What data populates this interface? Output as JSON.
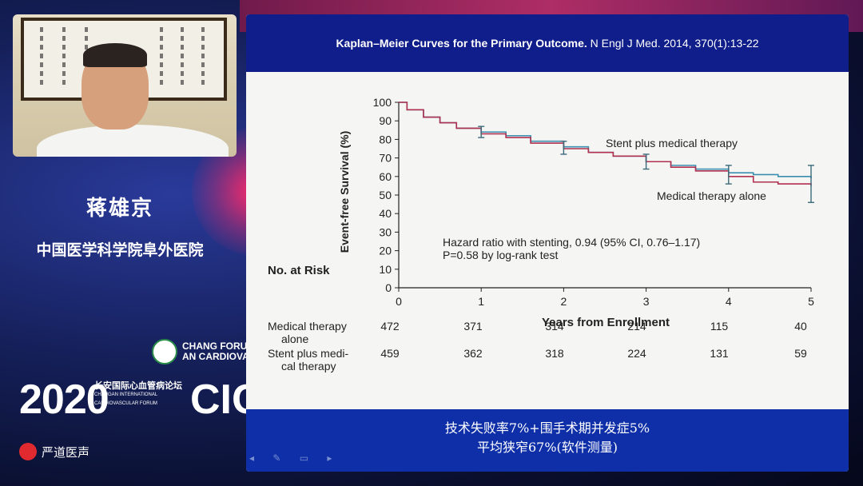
{
  "speaker": {
    "name": "蒋雄京",
    "organization": "中国医学科学院阜外医院"
  },
  "event": {
    "logo_text_line1": "CHANG FORUM",
    "logo_text_line2": "AN CARDIOVASCULAR",
    "year": "2020",
    "forum_name": "长安国际心血管病论坛",
    "forum_name_en": "CHANGAN INTERNATIONAL CARDIOVASCULAR FORUM",
    "acronym": "CIC",
    "brand": "严道医声"
  },
  "slide": {
    "title_bold": "Kaplan–Meier Curves for the Primary Outcome.",
    "title_citation": " N Engl J Med. 2014, 370(1):13-22",
    "caption_line1": "技术失败率7%+围手术期并发症5%",
    "caption_line2": "平均狭窄67%(软件测量)"
  },
  "chart_data": {
    "type": "line",
    "ylabel": "Event-free Survival (%)",
    "xlabel": "Years from Enrollment",
    "xlim": [
      0,
      5
    ],
    "ylim": [
      0,
      100
    ],
    "x_ticks": [
      "0",
      "1",
      "2",
      "3",
      "4",
      "5"
    ],
    "y_ticks": [
      "0",
      "10",
      "20",
      "30",
      "40",
      "50",
      "60",
      "70",
      "80",
      "90",
      "100"
    ],
    "grid": false,
    "colors": {
      "stent": "#3a8fb0",
      "medical": "#b03050"
    },
    "series": [
      {
        "name": "Stent plus medical therapy",
        "key": "stent",
        "x": [
          0,
          0.1,
          0.3,
          0.5,
          0.7,
          1.0,
          1.3,
          1.6,
          2.0,
          2.3,
          2.6,
          3.0,
          3.3,
          3.6,
          4.0,
          4.3,
          4.6,
          5.0
        ],
        "y": [
          100,
          96,
          92,
          89,
          86,
          84,
          82,
          79,
          76,
          73,
          71,
          68,
          66,
          64,
          62,
          61,
          60,
          59
        ]
      },
      {
        "name": "Medical therapy alone",
        "key": "medical",
        "x": [
          0,
          0.1,
          0.3,
          0.5,
          0.7,
          1.0,
          1.3,
          1.6,
          2.0,
          2.3,
          2.6,
          3.0,
          3.3,
          3.6,
          4.0,
          4.3,
          4.6,
          5.0
        ],
        "y": [
          100,
          96,
          92,
          89,
          86,
          83,
          81,
          78,
          75,
          73,
          71,
          68,
          65,
          63,
          60,
          57,
          56,
          55
        ]
      }
    ],
    "error_bars": [
      {
        "x": 1,
        "y": 84,
        "lo": 81,
        "hi": 87
      },
      {
        "x": 2,
        "y": 75,
        "lo": 72,
        "hi": 79
      },
      {
        "x": 3,
        "y": 68,
        "lo": 64,
        "hi": 72
      },
      {
        "x": 4,
        "y": 61,
        "lo": 56,
        "hi": 66
      },
      {
        "x": 5,
        "y": 56,
        "lo": 46,
        "hi": 66
      }
    ],
    "annotations": {
      "stent_label": "Stent plus medical therapy",
      "medical_label": "Medical therapy alone",
      "hr_text": "Hazard ratio with stenting, 0.94 (95% CI, 0.76–1.17)",
      "p_text": "P=0.58 by log-rank test"
    },
    "risk_table": {
      "header": "No. at Risk",
      "rows": [
        {
          "label_line1": "Medical therapy",
          "label_line2": "alone",
          "values": [
            "472",
            "371",
            "314",
            "214",
            "115",
            "40"
          ]
        },
        {
          "label_line1": "Stent plus medi-",
          "label_line2": "cal therapy",
          "values": [
            "459",
            "362",
            "318",
            "224",
            "131",
            "59"
          ]
        }
      ]
    }
  }
}
